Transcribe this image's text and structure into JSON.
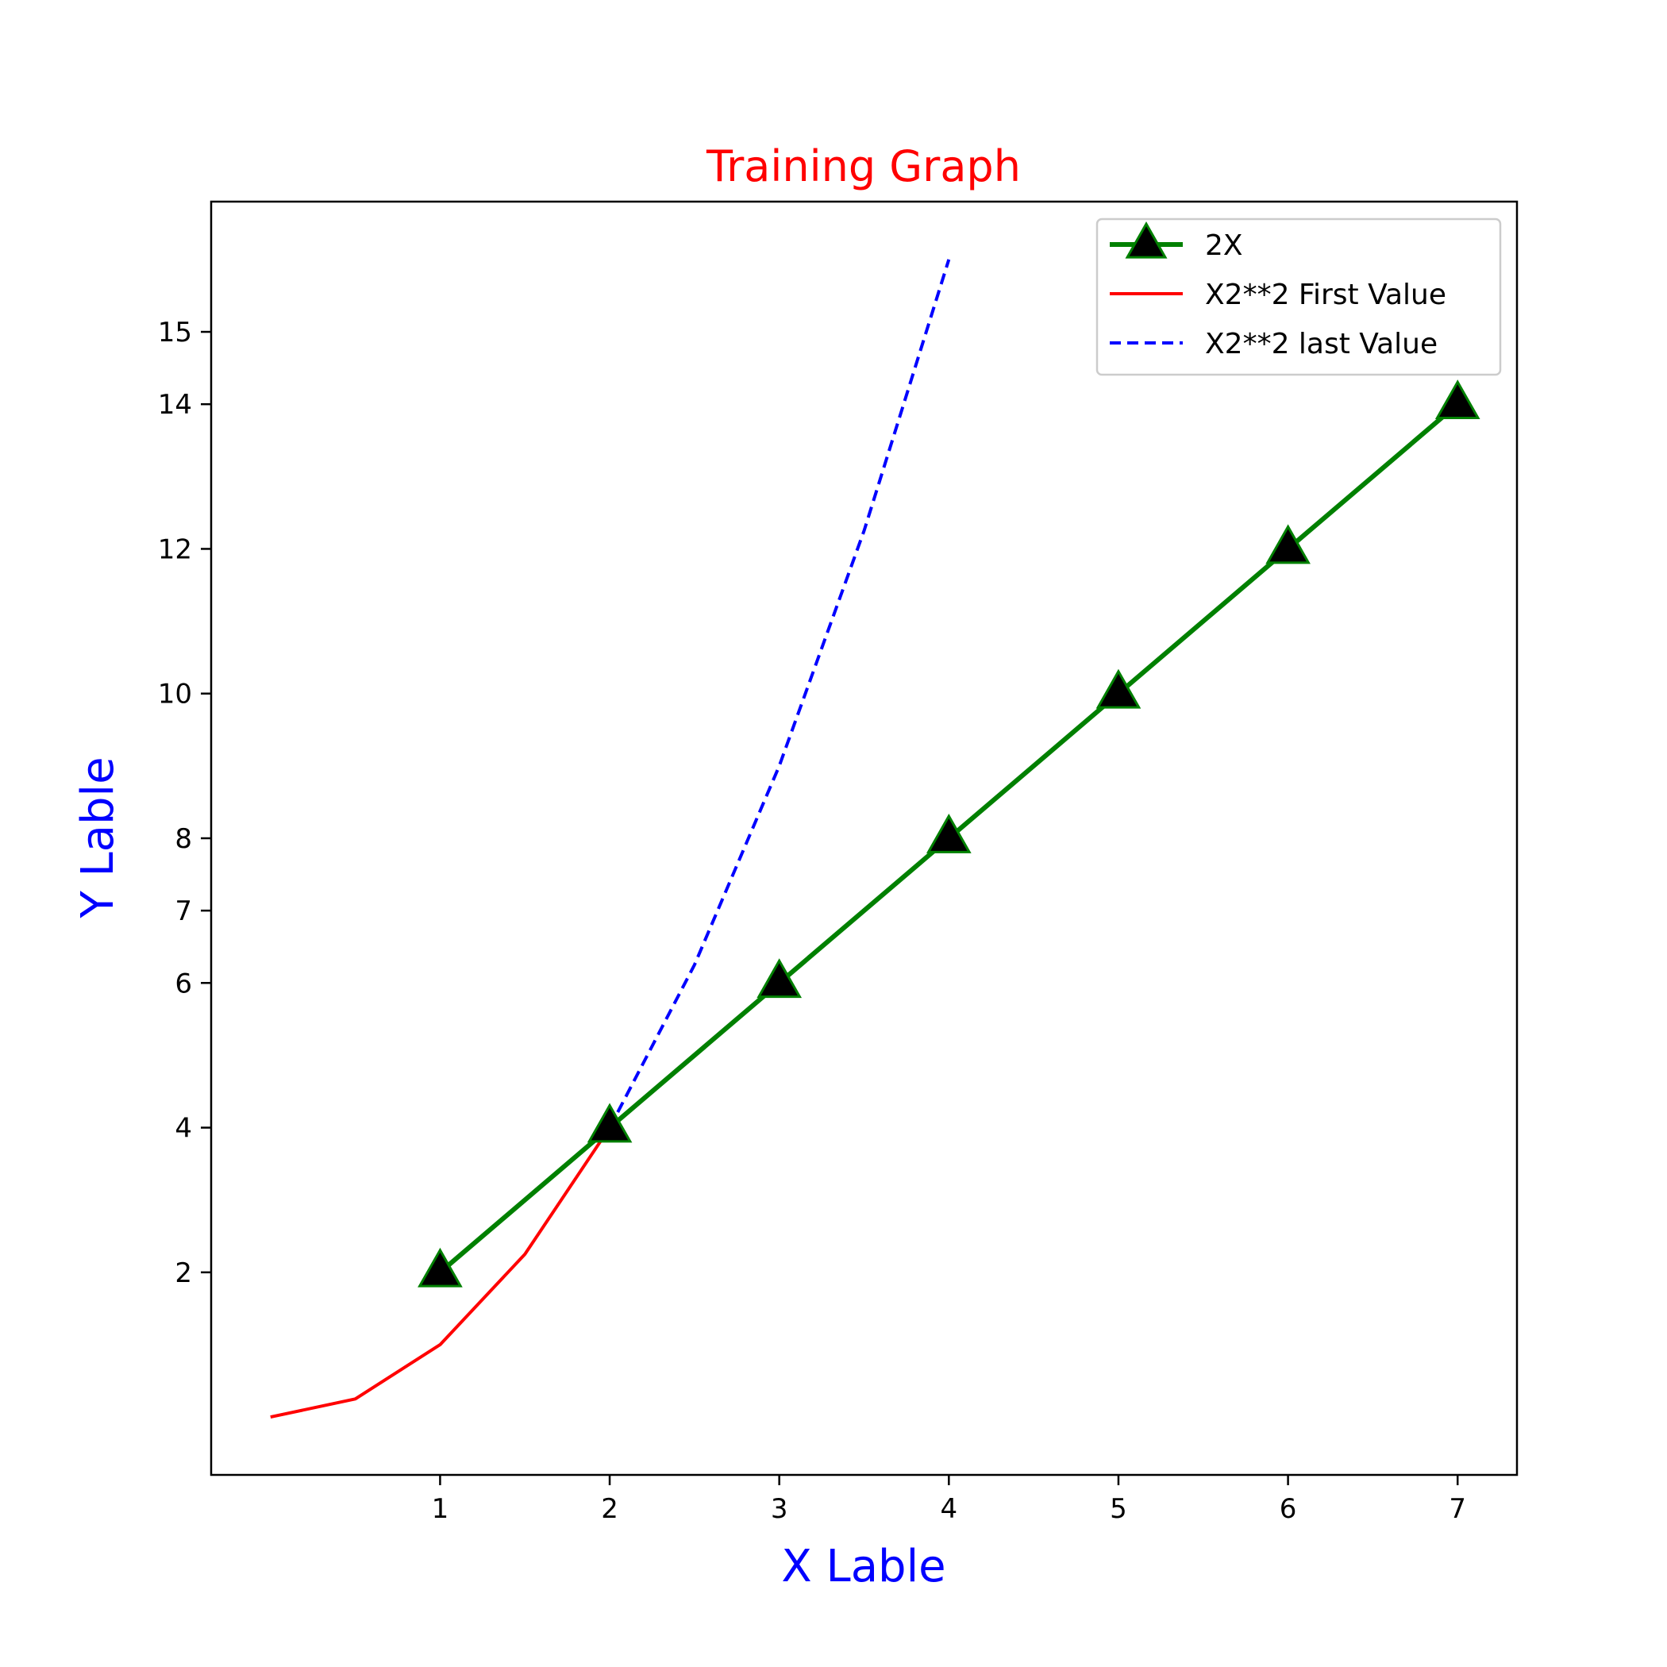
{
  "chart_data": {
    "type": "line",
    "title": "Training Graph",
    "xlabel": "X Lable",
    "ylabel": "Y Lable",
    "xlim": [
      -0.35,
      7.35
    ],
    "ylim": [
      -0.8,
      16.8
    ],
    "xticks": [
      1,
      2,
      3,
      4,
      5,
      6,
      7
    ],
    "yticks": [
      2,
      4,
      6,
      7,
      8,
      10,
      12,
      14,
      15
    ],
    "grid": false,
    "legend_position": "top-right",
    "series": [
      {
        "name": "2X",
        "x": [
          1,
          2,
          3,
          4,
          5,
          6,
          7
        ],
        "y": [
          2,
          4,
          6,
          8,
          10,
          12,
          14
        ],
        "color": "#008000",
        "marker": "triangle",
        "marker_fill": "#000000",
        "line_style": "solid"
      },
      {
        "name": "X2**2 First Value",
        "x": [
          0,
          0.5,
          1,
          1.5,
          2
        ],
        "y": [
          0,
          0.25,
          1,
          2.25,
          4
        ],
        "color": "#ff0000",
        "line_style": "solid"
      },
      {
        "name": "X2**2 last Value",
        "x": [
          2,
          2.5,
          3,
          3.5,
          4
        ],
        "y": [
          4,
          6.25,
          9,
          12.25,
          16
        ],
        "color": "#0000ff",
        "line_style": "dashed"
      }
    ]
  }
}
